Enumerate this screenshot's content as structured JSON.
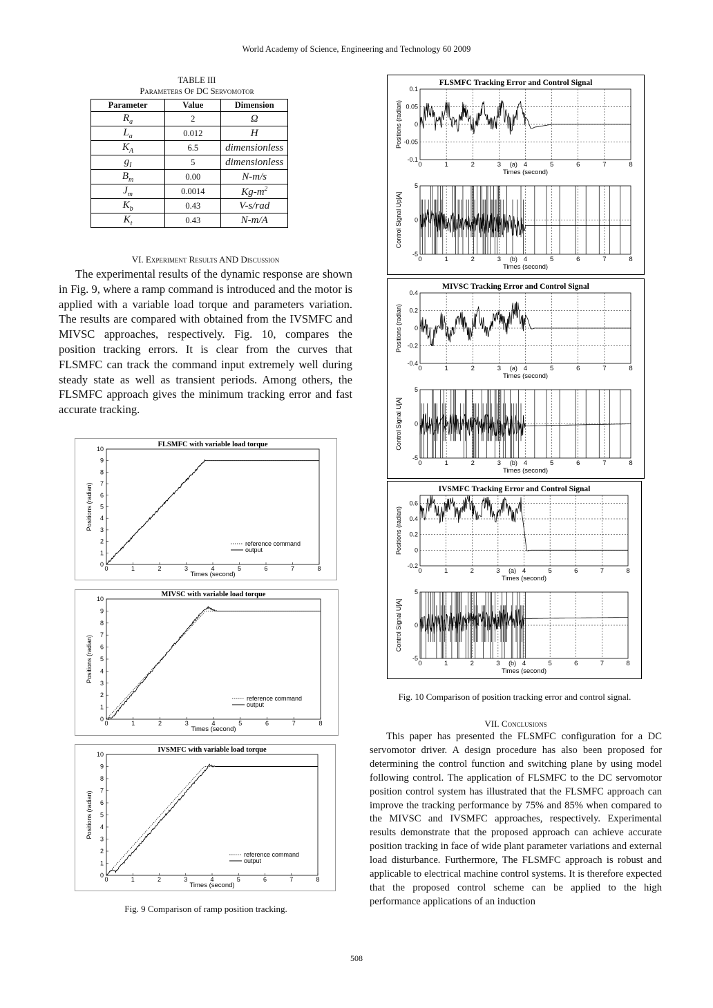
{
  "header": "World Academy of Science, Engineering and Technology 60 2009",
  "table": {
    "label": "TABLE III",
    "title": "Parameters Of DC Servomotor",
    "columns": [
      "Parameter",
      "Value",
      "Dimension"
    ],
    "rows": [
      {
        "param": "R",
        "sub": "a",
        "sup": "",
        "value": "2",
        "dim": "Ω",
        "dim_sup": ""
      },
      {
        "param": "L",
        "sub": "a",
        "sup": "",
        "value": "0.012",
        "dim": "H",
        "dim_sup": ""
      },
      {
        "param": "K",
        "sub": "A",
        "sup": "",
        "value": "6.5",
        "dim": "dimensionless",
        "dim_sup": ""
      },
      {
        "param": "g",
        "sub": "I",
        "sup": "",
        "value": "5",
        "dim": "dimensionless",
        "dim_sup": ""
      },
      {
        "param": "B",
        "sub": "m",
        "sup": "",
        "value": "0.00",
        "dim": "N-m/s",
        "dim_sup": ""
      },
      {
        "param": "J",
        "sub": "m",
        "sup": "",
        "value": "0.0014",
        "dim": "Kg-m",
        "dim_sup": "2"
      },
      {
        "param": "K",
        "sub": "b",
        "sup": "",
        "value": "0.43",
        "dim": "V-s/rad",
        "dim_sup": ""
      },
      {
        "param": "K",
        "sub": "t",
        "sup": "",
        "value": "0.43",
        "dim": "N-m/A",
        "dim_sup": ""
      }
    ]
  },
  "section6": {
    "heading": "VI. Experiment Results AND Discussion",
    "text": "The experimental results of the dynamic response are shown in Fig. 9, where a ramp command is introduced and the motor is applied with a variable load torque and parameters variation. The results are compared with obtained from the IVSMFC and MIVSC approaches, respectively. Fig. 10, compares the position tracking errors. It is clear from the curves that FLSMFC can track the command input extremely well during steady state as well as transient periods. Among others, the FLSMFC approach gives the minimum tracking error and fast accurate tracking."
  },
  "section7": {
    "heading": "VII. Conclusions",
    "text": "This paper has presented the FLSMFC configuration for a DC servomotor driver. A design procedure has also been proposed for determining the control function and switching plane by using model following control. The application of FLSMFC to the DC servomotor position control system has illustrated that the FLSMFC approach can improve the tracking performance by 75% and 85% when compared to the MIVSC and IVSMFC approaches, respectively. Experimental results demonstrate that the proposed approach can achieve accurate position tracking in face of wide plant parameter variations and external load disturbance. Furthermore, The FLSMFC approach is robust and applicable to electrical machine control systems. It is therefore expected that the proposed control scheme can be applied to the high performance applications of an induction"
  },
  "fig9_caption": "Fig. 9 Comparison of ramp position tracking.",
  "fig10_caption": "Fig. 10 Comparison of position tracking error and control signal.",
  "page_number": "508",
  "chart_data": [
    {
      "type": "line",
      "title": "FLSMFC with variable load torque",
      "xlabel": "Times (second)",
      "ylabel": "Positions (radian)",
      "xlim": [
        0,
        8
      ],
      "ylim": [
        0,
        10
      ],
      "xticks": [
        0,
        1,
        2,
        3,
        4,
        5,
        6,
        7,
        8
      ],
      "yticks": [
        0,
        1,
        2,
        3,
        4,
        5,
        6,
        7,
        8,
        9,
        10
      ],
      "legend": [
        "reference command",
        "output"
      ],
      "legend_position": "bottom-right",
      "grid": false,
      "series": [
        {
          "name": "reference command",
          "x": [
            0,
            3.7,
            8
          ],
          "y": [
            0,
            9,
            9
          ]
        },
        {
          "name": "output",
          "x": [
            0,
            3.7,
            8
          ],
          "y": [
            0,
            9,
            9
          ]
        }
      ]
    },
    {
      "type": "line",
      "title": "MIVSC with variable load torque",
      "xlabel": "Times (second)",
      "ylabel": "Positions (radian)",
      "xlim": [
        0,
        8
      ],
      "ylim": [
        0,
        10
      ],
      "xticks": [
        0,
        1,
        2,
        3,
        4,
        5,
        6,
        7,
        8
      ],
      "yticks": [
        0,
        1,
        2,
        3,
        4,
        5,
        6,
        7,
        8,
        9,
        10
      ],
      "legend": [
        "reference command",
        "output"
      ],
      "legend_position": "bottom-right",
      "grid": false,
      "series": [
        {
          "name": "reference command",
          "x": [
            0,
            3.7,
            8
          ],
          "y": [
            0,
            9,
            9
          ]
        },
        {
          "name": "output",
          "x": [
            0,
            0.2,
            3.6,
            3.8,
            4.1,
            8
          ],
          "y": [
            0,
            0.1,
            9.0,
            9.3,
            9.0,
            9
          ]
        }
      ]
    },
    {
      "type": "line",
      "title": "IVSMFC with variable load torque",
      "xlabel": "Times (second)",
      "ylabel": "Positions (radian)",
      "xlim": [
        0,
        8
      ],
      "ylim": [
        0,
        10
      ],
      "xticks": [
        0,
        1,
        2,
        3,
        4,
        5,
        6,
        7,
        8
      ],
      "yticks": [
        0,
        1,
        2,
        3,
        4,
        5,
        6,
        7,
        8,
        9,
        10
      ],
      "legend": [
        "reference command",
        "output"
      ],
      "legend_position": "bottom-right",
      "grid": false,
      "series": [
        {
          "name": "reference command",
          "x": [
            0,
            3.7,
            8
          ],
          "y": [
            0,
            9,
            9
          ]
        },
        {
          "name": "output",
          "x": [
            0,
            0.2,
            0.35,
            3.9,
            4.1,
            8
          ],
          "y": [
            0,
            0.4,
            0.3,
            9.1,
            9.0,
            9
          ]
        }
      ]
    },
    {
      "type": "line",
      "title": "FLSMFC Tracking Error and Control Signal",
      "panel": "(a)",
      "xlabel": "Times (second)",
      "ylabel": "Positions (radian)",
      "xlim": [
        0,
        8
      ],
      "ylim": [
        -0.1,
        0.1
      ],
      "xticks": [
        0,
        1,
        2,
        3,
        4,
        5,
        6,
        7,
        8
      ],
      "yticks": [
        -0.1,
        -0.05,
        0,
        0.05,
        0.1
      ],
      "ytick_labels": [
        "-0.1",
        "-0.05",
        "0",
        "0.05",
        "0.1"
      ],
      "grid": true,
      "series": [
        {
          "x": [
            0,
            4,
            4.2,
            5,
            8
          ],
          "y": [
            0.02,
            0.02,
            -0.01,
            0.0,
            0.0
          ],
          "noise_until": 4,
          "noise_amp": 0.04
        }
      ]
    },
    {
      "type": "line",
      "title": "",
      "panel": "(b)",
      "xlabel": "Times (second)",
      "ylabel": "Control Signal Up[A]",
      "xlim": [
        0,
        8
      ],
      "ylim": [
        -5,
        5
      ],
      "xticks": [
        0,
        1,
        2,
        3,
        4,
        5,
        6,
        7,
        8
      ],
      "yticks": [
        -5,
        0,
        5
      ],
      "grid": true,
      "series": [
        {
          "x": [
            0,
            4,
            8
          ],
          "y": [
            0,
            -0.8,
            -0.8
          ],
          "spikes": "dense until 4 s, sparse after"
        }
      ]
    },
    {
      "type": "line",
      "title": "MIVSC Tracking Error and Control Signal",
      "panel": "(a)",
      "xlabel": "Times (second)",
      "ylabel": "Positions (radian)",
      "xlim": [
        0,
        8
      ],
      "ylim": [
        -0.4,
        0.4
      ],
      "xticks": [
        0,
        1,
        2,
        3,
        4,
        5,
        6,
        7,
        8
      ],
      "yticks": [
        -0.4,
        -0.2,
        0,
        0.2,
        0.4
      ],
      "grid": true,
      "series": [
        {
          "x": [
            0,
            4,
            4.2,
            5,
            8
          ],
          "y": [
            -0.05,
            0.15,
            0.0,
            0.0,
            0.0
          ],
          "noise_until": 4,
          "noise_amp": 0.15
        }
      ]
    },
    {
      "type": "line",
      "title": "",
      "panel": "(b)",
      "xlabel": "Times (second)",
      "ylabel": "Control Signal U[A]",
      "xlim": [
        0,
        8
      ],
      "ylim": [
        -5,
        5
      ],
      "xticks": [
        0,
        1,
        2,
        3,
        4,
        5,
        6,
        7,
        8
      ],
      "yticks": [
        -5,
        0,
        5
      ],
      "grid": true,
      "series": [
        {
          "x": [
            0,
            4,
            8
          ],
          "y": [
            0,
            -0.3,
            0
          ],
          "spikes": "dense until 4 s, sparse after"
        }
      ]
    },
    {
      "type": "line",
      "title": "IVSMFC Tracking Error and Control Signal",
      "panel": "(a)",
      "xlabel": "Times (second)",
      "ylabel": "Positions (radian)",
      "xlim": [
        0,
        8
      ],
      "ylim": [
        -0.2,
        0.7
      ],
      "xticks": [
        0,
        1,
        2,
        3,
        4,
        5,
        6,
        7,
        8
      ],
      "yticks": [
        -0.2,
        0,
        0.2,
        0.4,
        0.6
      ],
      "grid": true,
      "series": [
        {
          "x": [
            0,
            3.9,
            4.1,
            4.5,
            5,
            8
          ],
          "y": [
            0.55,
            0.5,
            0.0,
            0.0,
            0.0,
            0.0
          ],
          "noise_until": 3.9,
          "noise_amp": 0.15
        }
      ]
    },
    {
      "type": "line",
      "title": "",
      "panel": "(b)",
      "xlabel": "Times (second)",
      "ylabel": "Control Signal U[A]",
      "xlim": [
        0,
        8
      ],
      "ylim": [
        -5,
        5
      ],
      "xticks": [
        0,
        1,
        2,
        3,
        4,
        5,
        6,
        7,
        8
      ],
      "yticks": [
        -5,
        0,
        5
      ],
      "grid": true,
      "series": [
        {
          "x": [
            0,
            4,
            8
          ],
          "y": [
            0,
            1,
            1.2
          ],
          "spikes": "dense until 4 s, one at 4 s"
        }
      ]
    }
  ]
}
